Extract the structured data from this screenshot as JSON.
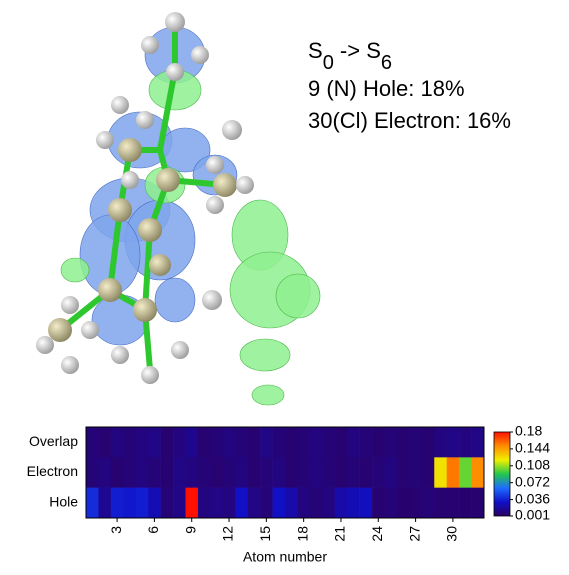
{
  "chart_data": {
    "type": "heatmap",
    "title_parts": [
      "S",
      "0",
      " -> S",
      "6"
    ],
    "annotations": [
      "9 (N) Hole: 18%",
      "30(Cl) Electron: 16%"
    ],
    "rows": [
      "Overlap",
      "Electron",
      "Hole"
    ],
    "xlabel": "Atom number",
    "xlim": [
      0.5,
      32.5
    ],
    "xticks": [
      3,
      6,
      9,
      12,
      15,
      18,
      21,
      24,
      27,
      30
    ],
    "clim": [
      0.001,
      0.18
    ],
    "cticks": [
      0.001,
      0.036,
      0.072,
      0.108,
      0.144,
      0.18
    ],
    "colormap": [
      "#2b0060",
      "#1010c8",
      "#1e6cff",
      "#22c84a",
      "#f0f000",
      "#ff8c00",
      "#ff1000"
    ],
    "z": [
      [
        0.008,
        0.006,
        0.01,
        0.008,
        0.01,
        0.012,
        0.006,
        0.01,
        0.014,
        0.006,
        0.008,
        0.01,
        0.008,
        0.006,
        0.012,
        0.008,
        0.006,
        0.008,
        0.01,
        0.008,
        0.006,
        0.01,
        0.008,
        0.006,
        0.008,
        0.006,
        0.008,
        0.006,
        0.01,
        0.012,
        0.01,
        0.012
      ],
      [
        0.008,
        0.01,
        0.006,
        0.008,
        0.01,
        0.008,
        0.006,
        0.012,
        0.01,
        0.008,
        0.006,
        0.008,
        0.01,
        0.006,
        0.008,
        0.01,
        0.006,
        0.008,
        0.01,
        0.008,
        0.006,
        0.008,
        0.006,
        0.008,
        0.01,
        0.006,
        0.008,
        0.006,
        0.125,
        0.155,
        0.1,
        0.15
      ],
      [
        0.04,
        0.015,
        0.035,
        0.033,
        0.035,
        0.025,
        0.008,
        0.012,
        0.18,
        0.01,
        0.012,
        0.01,
        0.03,
        0.012,
        0.008,
        0.03,
        0.022,
        0.01,
        0.008,
        0.01,
        0.022,
        0.025,
        0.028,
        0.006,
        0.008,
        0.005,
        0.006,
        0.008,
        0.006,
        0.006,
        0.005,
        0.006
      ]
    ]
  }
}
